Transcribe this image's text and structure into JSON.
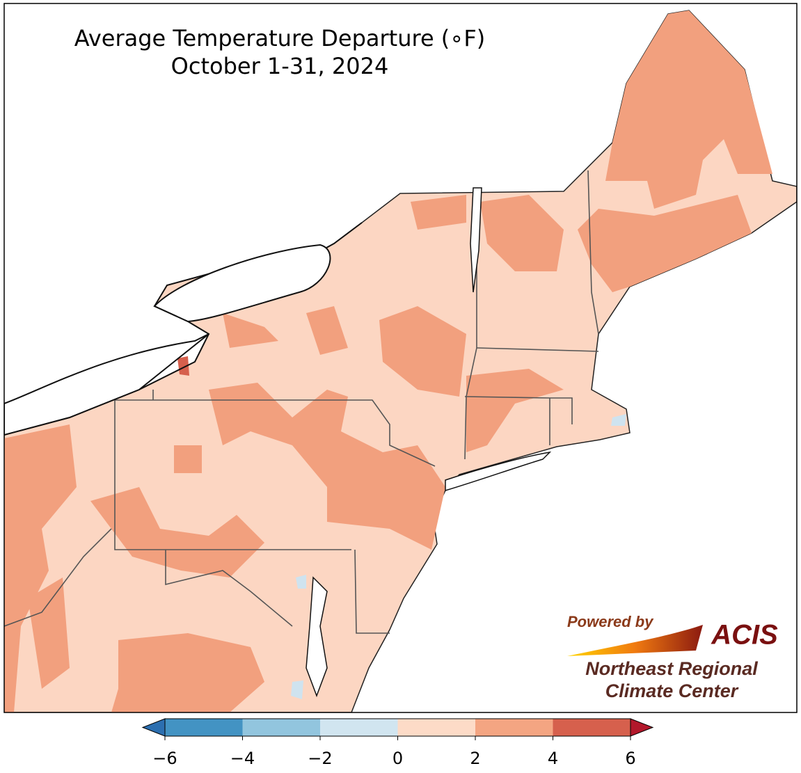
{
  "title": [
    "Average Temperature Departure (∘F)",
    "October 1-31, 2024"
  ],
  "colorbar": {
    "ticks": [
      {
        "value": -6,
        "label": "−6"
      },
      {
        "value": -4,
        "label": "−4"
      },
      {
        "value": -2,
        "label": "−2"
      },
      0,
      2,
      4,
      6
    ],
    "colors": [
      "#2c6fb0",
      "#4393c3",
      "#92c5de",
      "#d1e5f0",
      "#fddbc7",
      "#f4a582",
      "#d6604d",
      "#b2182b"
    ]
  },
  "logo": {
    "powered": "Powered by",
    "acis": "ACIS",
    "org1": "Northeast Regional",
    "org2": "Climate Center"
  }
}
